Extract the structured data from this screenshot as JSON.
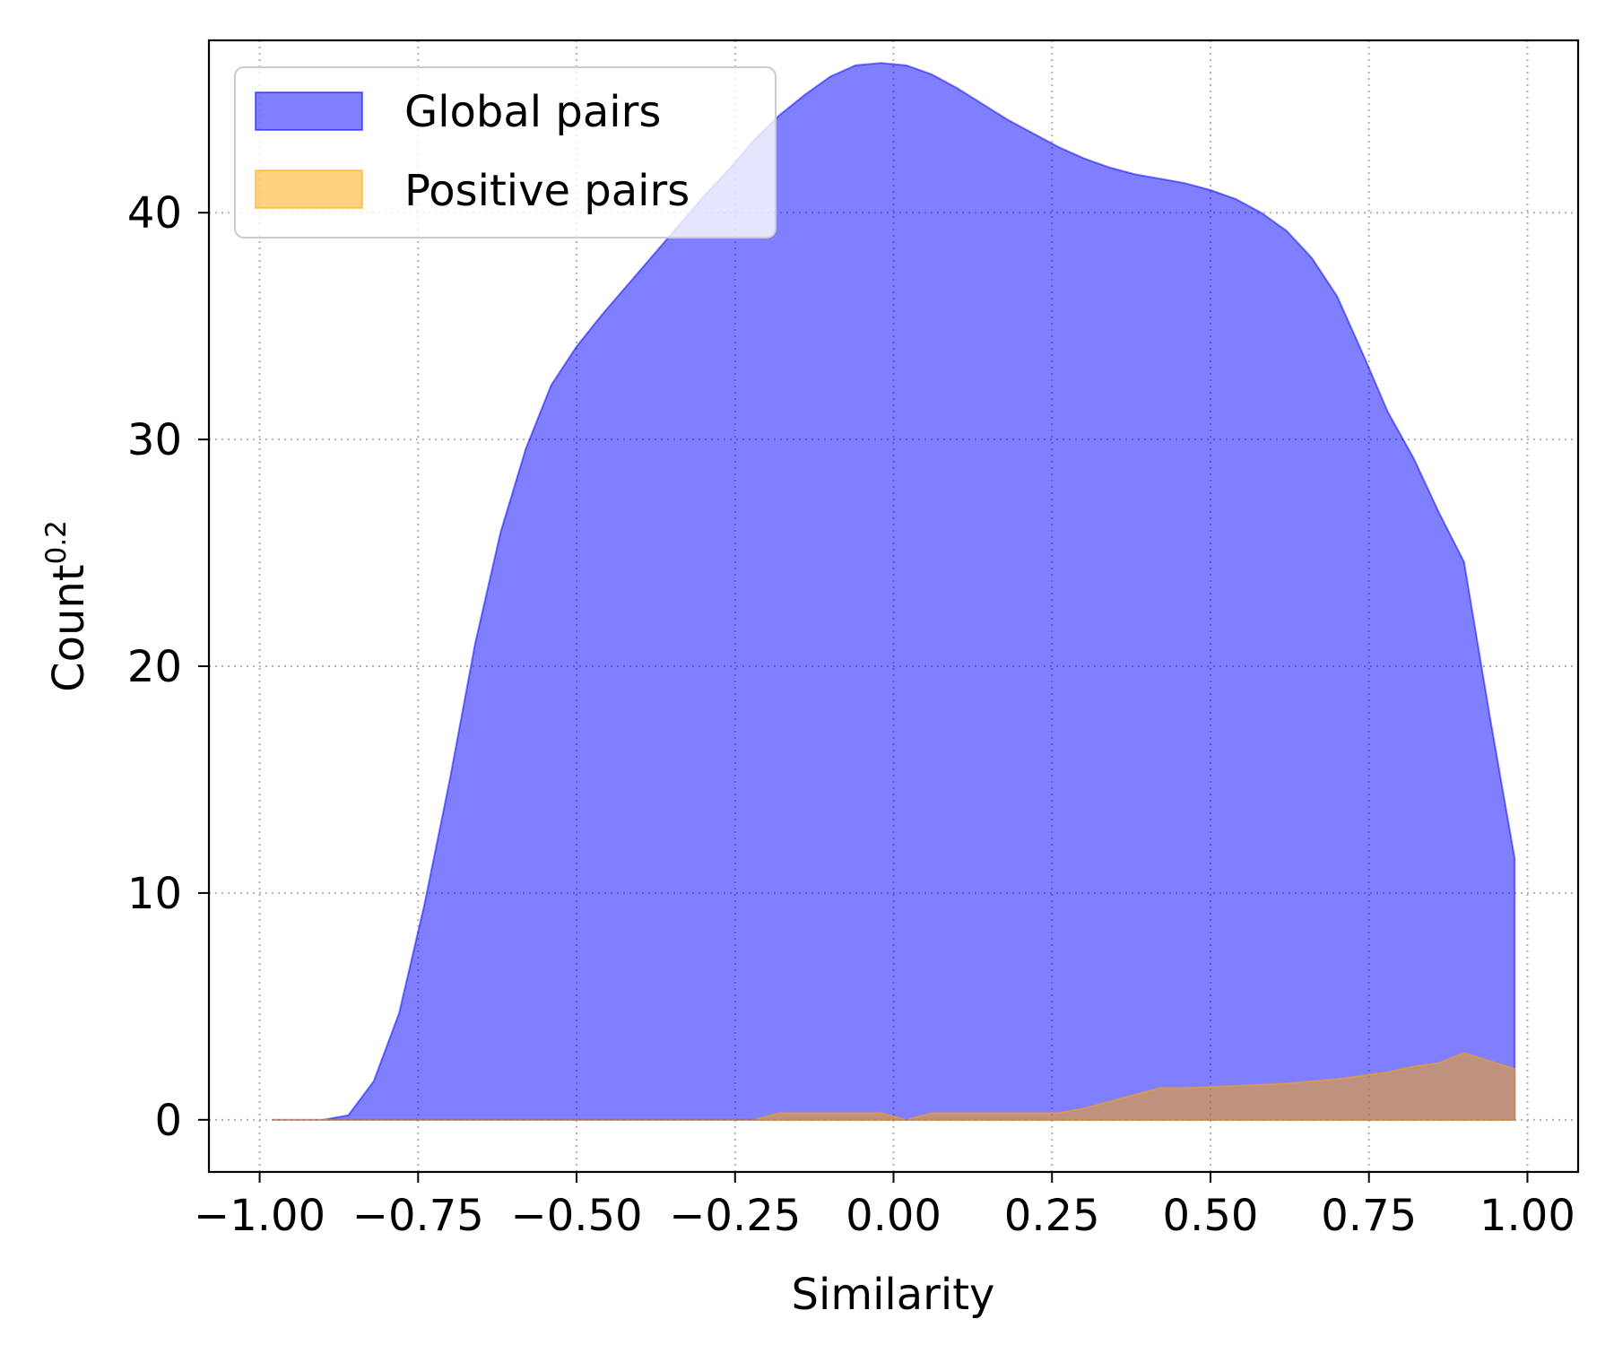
{
  "chart_data": {
    "type": "area",
    "xlabel": "Similarity",
    "ylabel": {
      "base": "Count",
      "exponent": "0.2"
    },
    "xlim": [
      -1.08,
      1.08
    ],
    "ylim": [
      -2.3,
      47.6
    ],
    "x_ticks": [
      -1.0,
      -0.75,
      -0.5,
      -0.25,
      0.0,
      0.25,
      0.5,
      0.75,
      1.0
    ],
    "x_tick_labels": [
      "−1.00",
      "−0.75",
      "−0.50",
      "−0.25",
      "0.00",
      "0.25",
      "0.50",
      "0.75",
      "1.00"
    ],
    "y_ticks": [
      0,
      10,
      20,
      30,
      40
    ],
    "y_tick_labels": [
      "0",
      "10",
      "20",
      "30",
      "40"
    ],
    "grid": true,
    "legend_position": "top-left",
    "series": [
      {
        "name": "Global pairs",
        "color": "#0000ff",
        "fill_opacity": 0.5,
        "x": [
          -0.98,
          -0.94,
          -0.9,
          -0.86,
          -0.82,
          -0.78,
          -0.74,
          -0.7,
          -0.66,
          -0.62,
          -0.58,
          -0.54,
          -0.5,
          -0.46,
          -0.42,
          -0.38,
          -0.34,
          -0.3,
          -0.26,
          -0.22,
          -0.18,
          -0.14,
          -0.1,
          -0.06,
          -0.02,
          0.02,
          0.06,
          0.1,
          0.14,
          0.18,
          0.22,
          0.26,
          0.3,
          0.34,
          0.38,
          0.42,
          0.46,
          0.5,
          0.54,
          0.58,
          0.62,
          0.66,
          0.7,
          0.74,
          0.78,
          0.82,
          0.86,
          0.9,
          0.94,
          0.98
        ],
        "y": [
          0,
          0,
          0,
          0.2,
          1.7,
          4.7,
          9.5,
          15.0,
          21.0,
          25.9,
          29.6,
          32.4,
          34.1,
          35.5,
          36.8,
          38.1,
          39.4,
          40.7,
          41.9,
          43.2,
          44.3,
          45.2,
          46.0,
          46.5,
          46.6,
          46.5,
          46.1,
          45.5,
          44.8,
          44.1,
          43.5,
          42.9,
          42.4,
          42.0,
          41.7,
          41.5,
          41.3,
          41.0,
          40.6,
          40.0,
          39.2,
          38.0,
          36.3,
          33.8,
          31.2,
          29.2,
          26.8,
          24.6,
          17.9,
          11.5
        ]
      },
      {
        "name": "Positive pairs",
        "color": "#ffa500",
        "fill_opacity": 0.5,
        "x": [
          -0.98,
          -0.94,
          -0.9,
          -0.86,
          -0.82,
          -0.78,
          -0.74,
          -0.7,
          -0.66,
          -0.62,
          -0.58,
          -0.54,
          -0.5,
          -0.46,
          -0.42,
          -0.38,
          -0.34,
          -0.3,
          -0.26,
          -0.22,
          -0.18,
          -0.14,
          -0.1,
          -0.06,
          -0.02,
          0.02,
          0.06,
          0.1,
          0.14,
          0.18,
          0.22,
          0.26,
          0.3,
          0.34,
          0.38,
          0.42,
          0.46,
          0.5,
          0.54,
          0.58,
          0.62,
          0.66,
          0.7,
          0.74,
          0.78,
          0.82,
          0.86,
          0.9,
          0.94,
          0.98
        ],
        "y": [
          0,
          0,
          0,
          0,
          0,
          0,
          0,
          0,
          0,
          0,
          0,
          0,
          0,
          0,
          0,
          0,
          0,
          0,
          0,
          0,
          0.3,
          0.3,
          0.3,
          0.3,
          0.3,
          0,
          0.3,
          0.3,
          0.3,
          0.3,
          0.3,
          0.3,
          0.5,
          0.8,
          1.1,
          1.4,
          1.4,
          1.45,
          1.5,
          1.55,
          1.6,
          1.7,
          1.8,
          1.95,
          2.1,
          2.35,
          2.5,
          2.95,
          2.6,
          2.25
        ]
      }
    ]
  }
}
